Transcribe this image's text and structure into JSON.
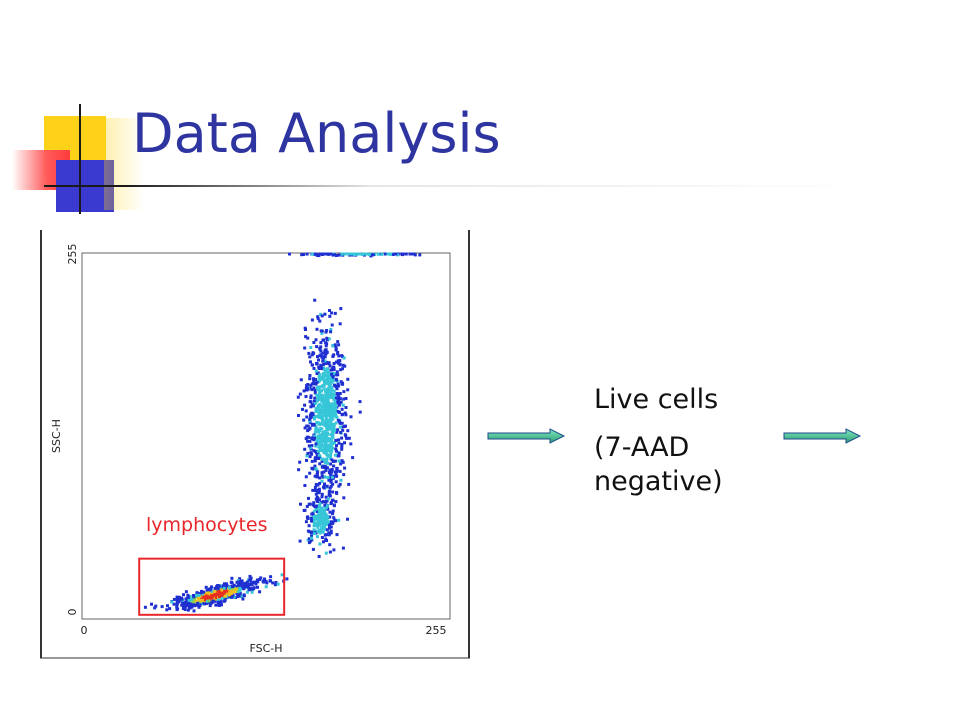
{
  "slide": {
    "title": "Data Analysis",
    "bullet_lines": [
      "Live cells",
      "(7-AAD negative)"
    ]
  },
  "colors": {
    "title": "#2f35a0",
    "gate": "#e8262b",
    "arrow": "#3fbf8f",
    "density_low": "#1f2fd0",
    "density_mid": "#36c6d8",
    "density_high": "#e83020"
  },
  "chart_data": {
    "type": "scatter",
    "xlabel": "FSC-H",
    "ylabel": "SSC-H",
    "xlim": [
      0,
      255
    ],
    "ylim": [
      0,
      255
    ],
    "x_ticks": [
      0,
      255
    ],
    "y_ticks": [
      0,
      255
    ],
    "populations": [
      {
        "center": [
          95,
          12
        ],
        "spread": [
          34,
          6
        ],
        "angle_deg": 14,
        "count": 520
      },
      {
        "center": [
          175,
          140
        ],
        "spread": [
          14,
          58
        ],
        "angle_deg": 0,
        "count": 900
      },
      {
        "center": [
          172,
          66
        ],
        "spread": [
          10,
          18
        ],
        "angle_deg": 0,
        "count": 200
      },
      {
        "center": [
          200,
          255
        ],
        "spread": [
          45,
          1
        ],
        "angle_deg": 0,
        "count": 90
      }
    ],
    "gate": {
      "label": "lymphocytes",
      "x_range": [
        40,
        145
      ],
      "y_range": [
        -2,
        38
      ]
    }
  },
  "arrows": [
    {
      "name": "arrow-to-live-cells"
    },
    {
      "name": "arrow-from-live-cells"
    }
  ]
}
